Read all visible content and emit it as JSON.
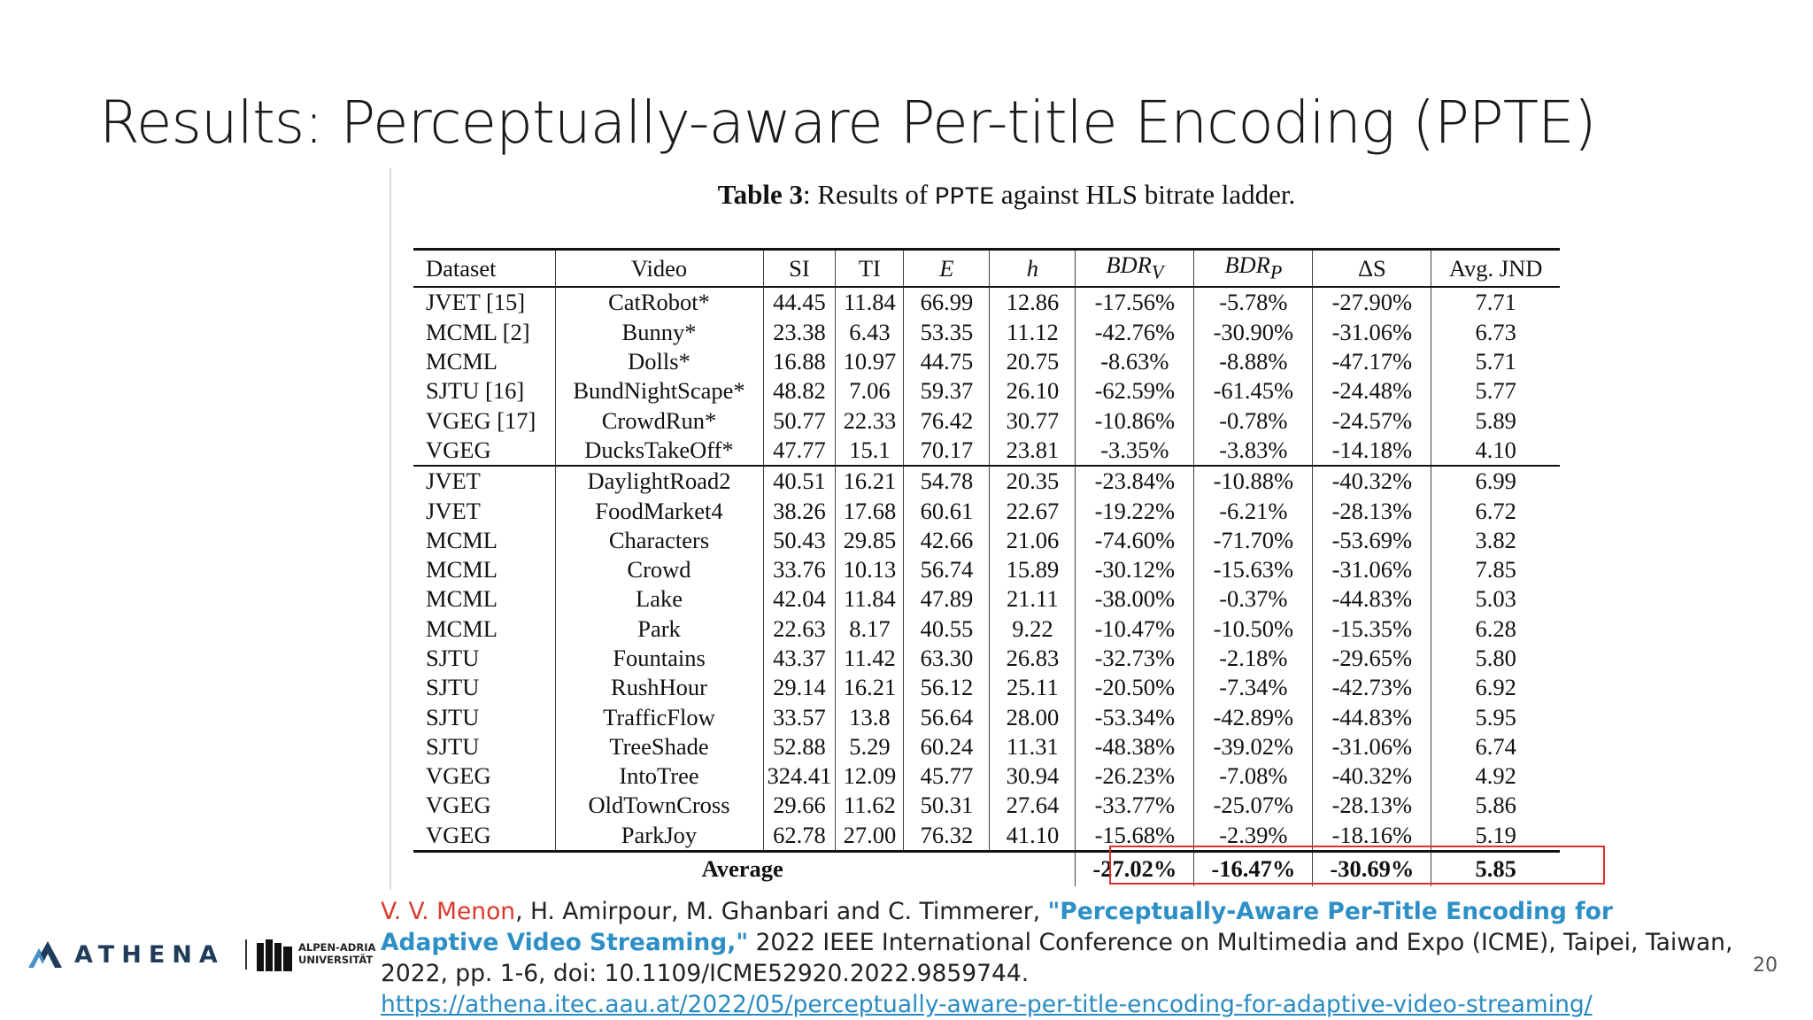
{
  "slide": {
    "title": "Results: Perceptually-aware Per-title Encoding (PPTE)",
    "page_number": "20"
  },
  "table": {
    "caption_label": "Table 3",
    "caption_pre": ": Results of ",
    "caption_method": "PPTE",
    "caption_post": " against HLS bitrate ladder.",
    "headers": {
      "dataset": "Dataset",
      "video": "Video",
      "si": "SI",
      "ti": "TI",
      "e": "E",
      "h": "h",
      "bdrv_base": "BDR",
      "bdrv_sub": "V",
      "bdrp_base": "BDR",
      "bdrp_sub": "P",
      "ds": "ΔS",
      "jnd": "Avg. JND"
    },
    "rows": [
      [
        "JVET [15]",
        "CatRobot*",
        "44.45",
        "11.84",
        "66.99",
        "12.86",
        "-17.56%",
        "-5.78%",
        "-27.90%",
        "7.71"
      ],
      [
        "MCML [2]",
        "Bunny*",
        "23.38",
        "6.43",
        "53.35",
        "11.12",
        "-42.76%",
        "-30.90%",
        "-31.06%",
        "6.73"
      ],
      [
        "MCML",
        "Dolls*",
        "16.88",
        "10.97",
        "44.75",
        "20.75",
        "-8.63%",
        "-8.88%",
        "-47.17%",
        "5.71"
      ],
      [
        "SJTU [16]",
        "BundNightScape*",
        "48.82",
        "7.06",
        "59.37",
        "26.10",
        "-62.59%",
        "-61.45%",
        "-24.48%",
        "5.77"
      ],
      [
        "VGEG [17]",
        "CrowdRun*",
        "50.77",
        "22.33",
        "76.42",
        "30.77",
        "-10.86%",
        "-0.78%",
        "-24.57%",
        "5.89"
      ],
      [
        "VGEG",
        "DucksTakeOff*",
        "47.77",
        "15.1",
        "70.17",
        "23.81",
        "-3.35%",
        "-3.83%",
        "-14.18%",
        "4.10"
      ],
      [
        "JVET",
        "DaylightRoad2",
        "40.51",
        "16.21",
        "54.78",
        "20.35",
        "-23.84%",
        "-10.88%",
        "-40.32%",
        "6.99"
      ],
      [
        "JVET",
        "FoodMarket4",
        "38.26",
        "17.68",
        "60.61",
        "22.67",
        "-19.22%",
        "-6.21%",
        "-28.13%",
        "6.72"
      ],
      [
        "MCML",
        "Characters",
        "50.43",
        "29.85",
        "42.66",
        "21.06",
        "-74.60%",
        "-71.70%",
        "-53.69%",
        "3.82"
      ],
      [
        "MCML",
        "Crowd",
        "33.76",
        "10.13",
        "56.74",
        "15.89",
        "-30.12%",
        "-15.63%",
        "-31.06%",
        "7.85"
      ],
      [
        "MCML",
        "Lake",
        "42.04",
        "11.84",
        "47.89",
        "21.11",
        "-38.00%",
        "-0.37%",
        "-44.83%",
        "5.03"
      ],
      [
        "MCML",
        "Park",
        "22.63",
        "8.17",
        "40.55",
        "9.22",
        "-10.47%",
        "-10.50%",
        "-15.35%",
        "6.28"
      ],
      [
        "SJTU",
        "Fountains",
        "43.37",
        "11.42",
        "63.30",
        "26.83",
        "-32.73%",
        "-2.18%",
        "-29.65%",
        "5.80"
      ],
      [
        "SJTU",
        "RushHour",
        "29.14",
        "16.21",
        "56.12",
        "25.11",
        "-20.50%",
        "-7.34%",
        "-42.73%",
        "6.92"
      ],
      [
        "SJTU",
        "TrafficFlow",
        "33.57",
        "13.8",
        "56.64",
        "28.00",
        "-53.34%",
        "-42.89%",
        "-44.83%",
        "5.95"
      ],
      [
        "SJTU",
        "TreeShade",
        "52.88",
        "5.29",
        "60.24",
        "11.31",
        "-48.38%",
        "-39.02%",
        "-31.06%",
        "6.74"
      ],
      [
        "VGEG",
        "IntoTree",
        "324.41",
        "12.09",
        "45.77",
        "30.94",
        "-26.23%",
        "-7.08%",
        "-40.32%",
        "4.92"
      ],
      [
        "VGEG",
        "OldTownCross",
        "29.66",
        "11.62",
        "50.31",
        "27.64",
        "-33.77%",
        "-25.07%",
        "-28.13%",
        "5.86"
      ],
      [
        "VGEG",
        "ParkJoy",
        "62.78",
        "27.00",
        "76.32",
        "41.10",
        "-15.68%",
        "-2.39%",
        "-18.16%",
        "5.19"
      ]
    ],
    "average": {
      "label": "Average",
      "bdrv": "-27.02%",
      "bdrp": "-16.47%",
      "ds": "-30.69%",
      "jnd": "5.85"
    },
    "highlight_color": "#d83030"
  },
  "citation": {
    "highlight_author": "V. V. Menon",
    "other_authors": ", H. Amirpour, M. Ghanbari and C. Timmerer, ",
    "paper_title": "\"Perceptually-Aware Per-Title Encoding for Adaptive Video Streaming,\"",
    "venue": " 2022 IEEE International Conference on Multimedia and Expo (ICME), Taipei, Taiwan, 2022, pp. 1-6, doi: 10.1109/ICME52920.2022.9859744.",
    "url": "https://athena.itec.aau.at/2022/05/perceptually-aware-per-title-encoding-for-adaptive-video-streaming/"
  },
  "logos": {
    "athena": "ATHENA",
    "aau_line1": "ALPEN-ADRIA",
    "aau_line2": "UNIVERSITÄT"
  },
  "colors": {
    "author_highlight": "#d93a2b",
    "title_link": "#2d8fc5",
    "athena_brand": "#1f3c5a"
  }
}
